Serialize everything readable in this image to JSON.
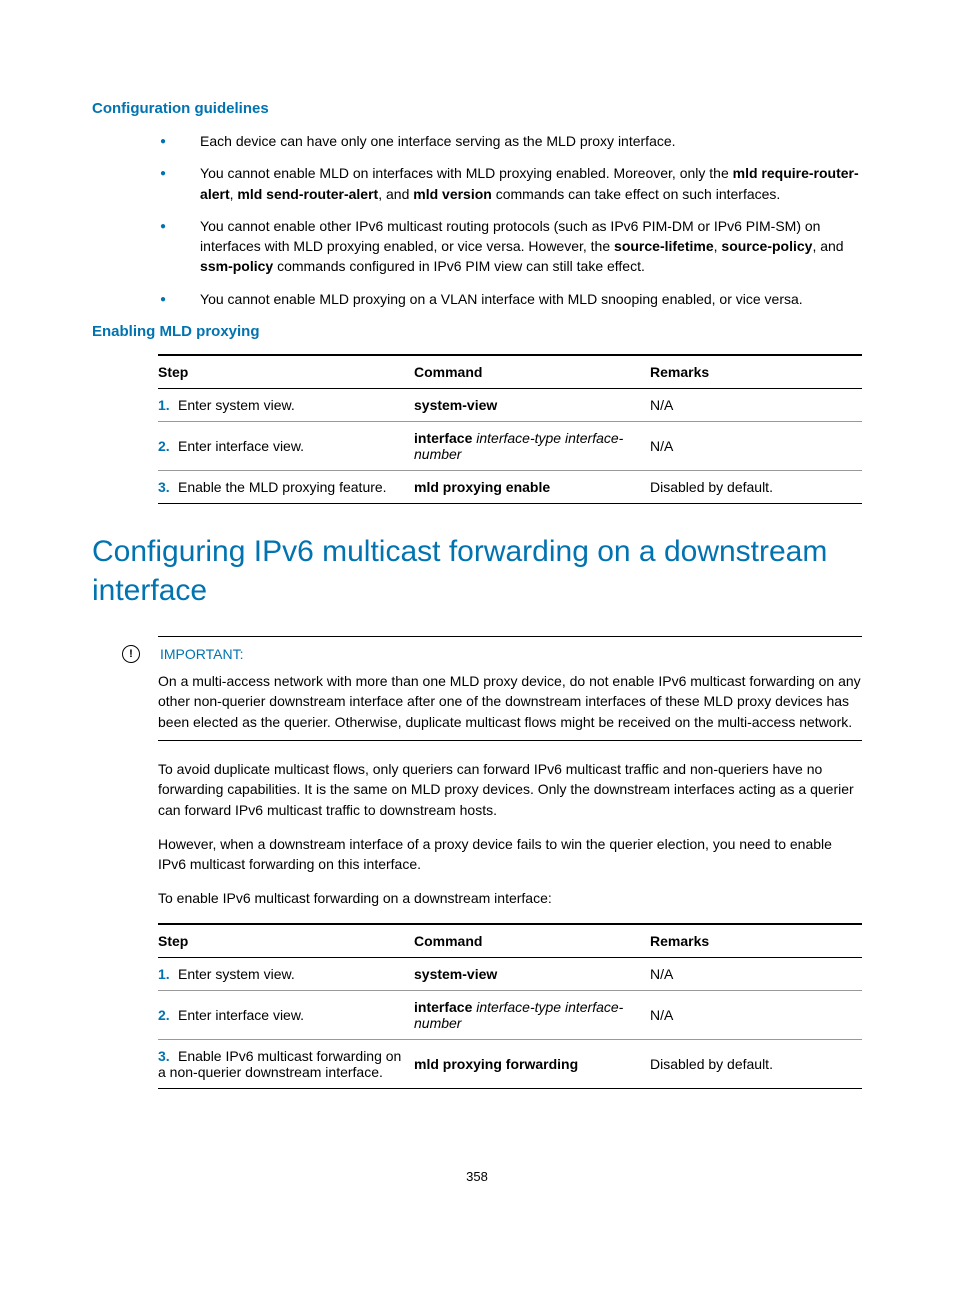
{
  "colors": {
    "accent": "#0073b0",
    "text": "#000000",
    "rule_light": "#999999",
    "background": "#ffffff"
  },
  "typography": {
    "body_size_pt": 10.5,
    "h3_size_pt": 11.5,
    "h1_size_pt": 22,
    "font_family": "Arial"
  },
  "section1": {
    "heading": "Configuration guidelines",
    "bullets": [
      {
        "pre": "Each device can have only one interface serving as the MLD proxy interface."
      },
      {
        "pre": "You cannot enable MLD on interfaces with MLD proxying enabled. Moreover, only the ",
        "b1": "mld require-router-alert",
        "mid1": ", ",
        "b2": "mld send-router-alert",
        "mid2": ", and ",
        "b3": "mld version",
        "post": " commands can take effect on such interfaces."
      },
      {
        "pre": "You cannot enable other IPv6 multicast routing protocols (such as IPv6 PIM-DM or IPv6 PIM-SM) on interfaces with MLD proxying enabled, or vice versa. However, the ",
        "b1": "source-lifetime",
        "mid1": ", ",
        "b2": "source-policy",
        "mid2": ", and ",
        "b3": "ssm-policy",
        "post": " commands configured in IPv6 PIM view can still take effect."
      },
      {
        "pre": "You cannot enable MLD proxying on a VLAN interface with MLD snooping enabled, or vice versa."
      }
    ]
  },
  "section2": {
    "heading": "Enabling MLD proxying",
    "table": {
      "headers": {
        "step": "Step",
        "command": "Command",
        "remarks": "Remarks"
      },
      "rows": [
        {
          "num": "1.",
          "step": "Enter system view.",
          "cmd_bold": "system-view",
          "cmd_ital": "",
          "remarks": "N/A"
        },
        {
          "num": "2.",
          "step": "Enter interface view.",
          "cmd_bold": "interface",
          "cmd_ital": " interface-type interface-number",
          "remarks": "N/A"
        },
        {
          "num": "3.",
          "step": "Enable the MLD proxying feature.",
          "cmd_bold": "mld proxying enable",
          "cmd_ital": "",
          "remarks": "Disabled by default."
        }
      ]
    }
  },
  "section3": {
    "heading": "Configuring IPv6 multicast forwarding on a downstream interface",
    "important_label": "IMPORTANT:",
    "important_icon": "!",
    "important_text": "On a multi-access network with more than one MLD proxy device, do not enable IPv6 multicast forwarding on any other non-querier downstream interface after one of the downstream interfaces of these MLD proxy devices has been elected as the querier. Otherwise, duplicate multicast flows might be received on the multi-access network.",
    "para1": "To avoid duplicate multicast flows, only queriers can forward IPv6 multicast traffic and non-queriers have no forwarding capabilities. It is the same on MLD proxy devices. Only the downstream interfaces acting as a querier can forward IPv6 multicast traffic to downstream hosts.",
    "para2": "However, when a downstream interface of a proxy device fails to win the querier election, you need to enable IPv6 multicast forwarding on this interface.",
    "para3": "To enable IPv6 multicast forwarding on a downstream interface:",
    "table": {
      "headers": {
        "step": "Step",
        "command": "Command",
        "remarks": "Remarks"
      },
      "rows": [
        {
          "num": "1.",
          "step": "Enter system view.",
          "cmd_bold": "system-view",
          "cmd_ital": "",
          "remarks": "N/A"
        },
        {
          "num": "2.",
          "step": "Enter interface view.",
          "cmd_bold": "interface",
          "cmd_ital": " interface-type interface-number",
          "remarks": "N/A"
        },
        {
          "num": "3.",
          "step": "Enable IPv6 multicast forwarding on a non-querier downstream interface.",
          "cmd_bold": "mld proxying forwarding",
          "cmd_ital": "",
          "remarks": "Disabled by default."
        }
      ]
    }
  },
  "page_number": "358"
}
